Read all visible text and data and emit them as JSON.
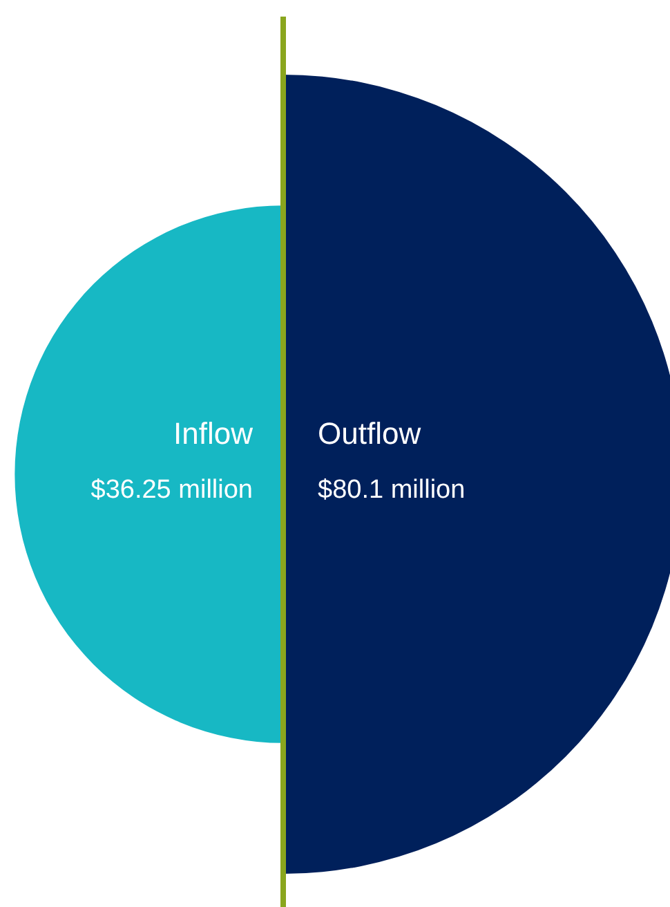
{
  "chart_data": {
    "type": "other",
    "categories": [
      "Inflow",
      "Outflow"
    ],
    "values": [
      36.25,
      80.1
    ],
    "value_labels": [
      "$36.25 million",
      "$80.1 million"
    ],
    "colors": [
      "#17b8c4",
      "#00205b"
    ]
  }
}
